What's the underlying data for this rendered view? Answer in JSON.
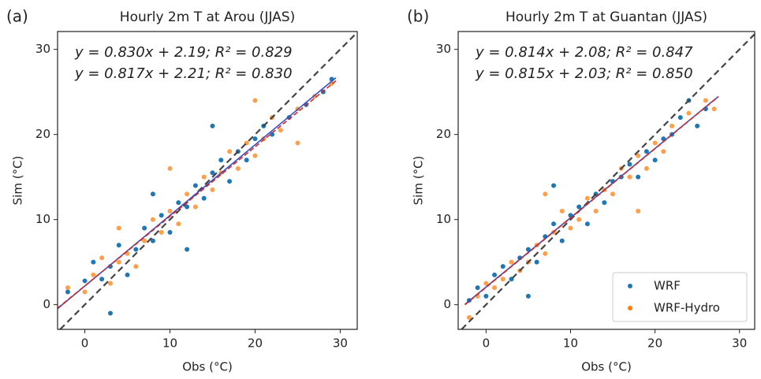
{
  "chart_data": [
    {
      "type": "scatter",
      "panel_label": "(a)",
      "title": "Hourly 2m T at Arou (JJAS)",
      "xlabel": "Obs (°C)",
      "ylabel": "Sim (°C)",
      "xlim": [
        -3.2,
        32
      ],
      "ylim": [
        -2.9,
        32.1
      ],
      "xticks": [
        0,
        10,
        20,
        30
      ],
      "yticks": [
        0,
        10,
        20,
        30
      ],
      "series": [
        {
          "color": "#1f77b4",
          "x": [
            -2,
            0,
            1,
            2,
            3,
            4,
            5,
            6,
            7,
            8,
            9,
            10,
            11,
            12,
            13,
            14,
            15,
            16,
            17,
            18,
            19,
            20,
            21,
            22,
            24,
            26,
            28,
            29,
            3,
            8,
            15,
            12
          ],
          "y": [
            1.5,
            2.8,
            5,
            3,
            4.5,
            7,
            3.5,
            6.5,
            9,
            7.5,
            10.5,
            8.5,
            12,
            11.5,
            14,
            12.5,
            15.5,
            17,
            14.5,
            18,
            17,
            19.5,
            21,
            20,
            22,
            23.5,
            25,
            26.5,
            -1,
            13,
            21,
            6.5
          ],
          "fit": {
            "slope": 0.83,
            "intercept": 2.19,
            "x_range": [
              -3.2,
              29.5
            ],
            "color": "#3a4fc0",
            "label": "y = 0.830x + 2.19; R² = 0.829"
          }
        },
        {
          "color": "#ff7f0e",
          "x": [
            -2,
            0,
            1,
            2,
            3,
            4,
            5,
            6,
            7,
            8,
            9,
            10,
            11,
            12,
            13,
            14,
            15,
            16,
            17,
            18,
            19,
            20,
            21,
            22,
            23,
            25,
            27,
            29,
            4,
            10,
            20,
            25
          ],
          "y": [
            2,
            1.5,
            3.5,
            5.5,
            2.5,
            5,
            6,
            4.5,
            7.5,
            10,
            8.5,
            11,
            9.5,
            13,
            11.5,
            15,
            13.5,
            15.5,
            18,
            16,
            19,
            17.5,
            19.5,
            22,
            20.5,
            23,
            24.5,
            26,
            9,
            16,
            24,
            19
          ],
          "fit": {
            "slope": 0.817,
            "intercept": 2.21,
            "x_range": [
              -3.2,
              29.5
            ],
            "color": "#d62728",
            "label": "y = 0.817x + 2.21; R² = 0.830"
          }
        }
      ]
    },
    {
      "type": "scatter",
      "panel_label": "(b)",
      "title": "Hourly 2m T at Guantan (JJAS)",
      "xlabel": "Obs (°C)",
      "ylabel": "Sim (°C)",
      "xlim": [
        -3.3,
        31.8
      ],
      "ylim": [
        -2.9,
        32.1
      ],
      "xticks": [
        0,
        10,
        20,
        30
      ],
      "yticks": [
        0,
        10,
        20,
        30
      ],
      "legend": "lower right",
      "series": [
        {
          "name": "WRF",
          "color": "#1f77b4",
          "x": [
            -2,
            -1,
            0,
            1,
            2,
            3,
            4,
            5,
            6,
            7,
            8,
            9,
            10,
            11,
            12,
            13,
            14,
            15,
            16,
            17,
            18,
            19,
            20,
            21,
            22,
            23,
            24,
            25,
            26,
            8,
            5
          ],
          "y": [
            0.5,
            2,
            1,
            3.5,
            4.5,
            3,
            5.5,
            6.5,
            5,
            8,
            9.5,
            7.5,
            10.5,
            11.5,
            9.5,
            13,
            12,
            14.5,
            15,
            16.5,
            15,
            18,
            17,
            19.5,
            20,
            22,
            24,
            21,
            23,
            14,
            1
          ],
          "fit": {
            "slope": 0.814,
            "intercept": 2.08,
            "x_range": [
              -2.5,
              27.5
            ],
            "color": "#3a4fc0",
            "label": "y = 0.814x + 2.08; R² = 0.847"
          }
        },
        {
          "name": "WRF-Hydro",
          "color": "#ff7f0e",
          "x": [
            -2,
            -1,
            0,
            1,
            2,
            3,
            4,
            5,
            6,
            7,
            8,
            9,
            10,
            11,
            12,
            13,
            14,
            15,
            16,
            17,
            18,
            19,
            20,
            21,
            22,
            24,
            26,
            27,
            7,
            18
          ],
          "y": [
            -1.5,
            1,
            2.5,
            2,
            3,
            5,
            4,
            5,
            7,
            6,
            8.5,
            11,
            9,
            10,
            12.5,
            11,
            13.5,
            13,
            16,
            15,
            17.5,
            16,
            19,
            18,
            21,
            22.5,
            24,
            23,
            13,
            11
          ],
          "fit": {
            "slope": 0.815,
            "intercept": 2.03,
            "x_range": [
              -2.5,
              27.5
            ],
            "color": "#d62728",
            "label": "y = 0.815x + 2.03; R² = 0.850"
          }
        }
      ]
    }
  ]
}
